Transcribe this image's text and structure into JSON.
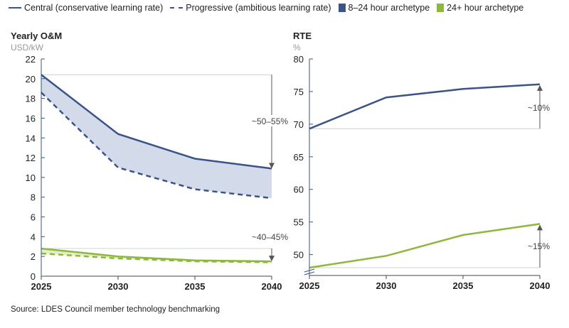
{
  "legend": {
    "central": "Central (conservative learning rate)",
    "progressive": "Progressive (ambitious learning rate)",
    "archetype_8_24": "8–24 hour archetype",
    "archetype_24_plus": "24+ hour archetype"
  },
  "colors": {
    "blue": "#3b5387",
    "blue_fill": "#d3dbea",
    "green": "#8fb73e",
    "green_fill": "#e4eecb",
    "ref_line": "#c8d3d3",
    "arrow": "#555555"
  },
  "source": "Source: LDES Council member technology benchmarking",
  "chart_data": [
    {
      "type": "line",
      "title": "Yearly O&M",
      "ylabel": "USD/kW",
      "x": [
        2025,
        2030,
        2035,
        2040
      ],
      "xticks": [
        "2025",
        "2030",
        "2035",
        "2040"
      ],
      "ylim": [
        0,
        22
      ],
      "yticks": [
        "0",
        "2",
        "4",
        "6",
        "8",
        "10",
        "12",
        "14",
        "16",
        "18",
        "20",
        "22"
      ],
      "series": [
        {
          "name": "8–24 hour archetype – Central",
          "archetype": "8-24",
          "style": "solid",
          "values": [
            20.4,
            14.4,
            11.9,
            10.9
          ]
        },
        {
          "name": "8–24 hour archetype – Progressive",
          "archetype": "8-24",
          "style": "dashed",
          "values": [
            18.6,
            11.0,
            8.8,
            7.9
          ]
        },
        {
          "name": "24+ hour archetype – Central",
          "archetype": "24+",
          "style": "solid",
          "values": [
            2.8,
            2.0,
            1.6,
            1.5
          ]
        },
        {
          "name": "24+ hour archetype – Progressive",
          "archetype": "24+",
          "style": "dashed",
          "values": [
            2.3,
            1.8,
            1.5,
            1.4
          ]
        }
      ],
      "annotations": [
        "~50–55%",
        "~40–45%"
      ]
    },
    {
      "type": "line",
      "title": "RTE",
      "ylabel": "%",
      "x": [
        2025,
        2030,
        2035,
        2040
      ],
      "xticks": [
        "2025",
        "2030",
        "2035",
        "2040"
      ],
      "ylim": [
        46.8,
        80
      ],
      "axis_break": true,
      "yticks": [
        "50",
        "55",
        "60",
        "65",
        "70",
        "75",
        "80"
      ],
      "series": [
        {
          "name": "8–24 hour archetype",
          "archetype": "8-24",
          "style": "solid",
          "values": [
            69.3,
            74.1,
            75.4,
            76.1
          ]
        },
        {
          "name": "24+ hour archetype",
          "archetype": "24+",
          "style": "solid",
          "values": [
            48.0,
            49.8,
            53.0,
            54.7
          ]
        }
      ],
      "annotations": [
        "~10%",
        "~15%"
      ]
    }
  ]
}
